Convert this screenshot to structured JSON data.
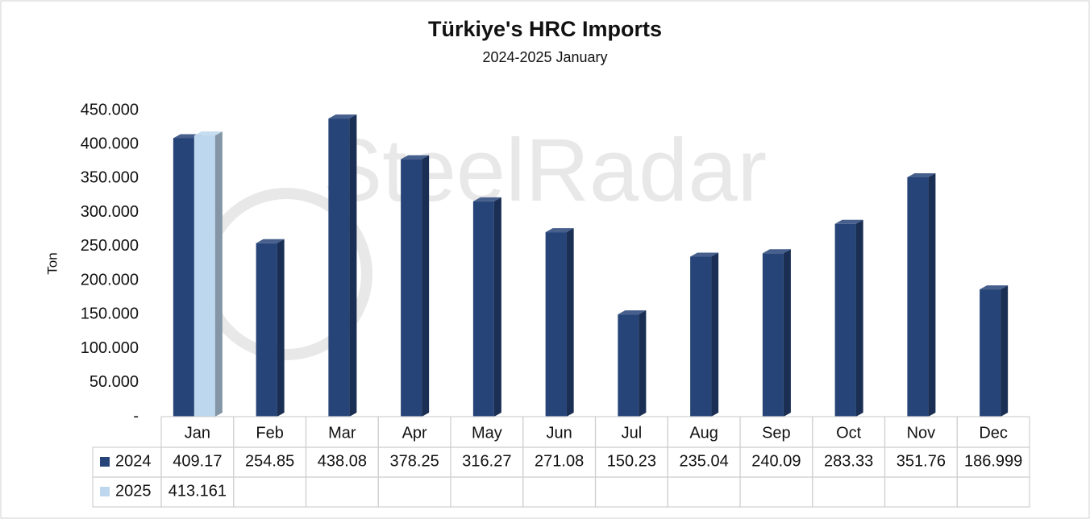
{
  "chart_data": {
    "type": "bar",
    "title": "Türkiye's HRC Imports",
    "subtitle": "2024-2025 January",
    "y_label": "Ton",
    "watermark": "SteelRadar",
    "categories": [
      "Jan",
      "Feb",
      "Mar",
      "Apr",
      "May",
      "Jun",
      "Jul",
      "Aug",
      "Sep",
      "Oct",
      "Nov",
      "Dec"
    ],
    "series": [
      {
        "name": "2024",
        "color": "#264478",
        "values": [
          409170,
          254850,
          438080,
          378250,
          316270,
          271080,
          150230,
          235040,
          240090,
          283330,
          351760,
          186999
        ],
        "value_labels": [
          "409.17",
          "254.85",
          "438.08",
          "378.25",
          "316.27",
          "271.08",
          "150.23",
          "235.04",
          "240.09",
          "283.33",
          "351.76",
          "186.999"
        ]
      },
      {
        "name": "2025",
        "color": "#bdd7ee",
        "values": [
          413161,
          null,
          null,
          null,
          null,
          null,
          null,
          null,
          null,
          null,
          null,
          null
        ],
        "value_labels": [
          "413.161",
          null,
          null,
          null,
          null,
          null,
          null,
          null,
          null,
          null,
          null,
          null
        ]
      }
    ],
    "ylim": [
      0,
      450000
    ],
    "yticks": [
      {
        "value": 0,
        "label": "-"
      },
      {
        "value": 50000,
        "label": "50.000"
      },
      {
        "value": 100000,
        "label": "100.000"
      },
      {
        "value": 150000,
        "label": "150.000"
      },
      {
        "value": 200000,
        "label": "200.000"
      },
      {
        "value": 250000,
        "label": "250.000"
      },
      {
        "value": 300000,
        "label": "300.000"
      },
      {
        "value": 350000,
        "label": "350.000"
      },
      {
        "value": 400000,
        "label": "400.000"
      },
      {
        "value": 450000,
        "label": "450.000"
      }
    ],
    "grid": false,
    "data_table": true
  }
}
